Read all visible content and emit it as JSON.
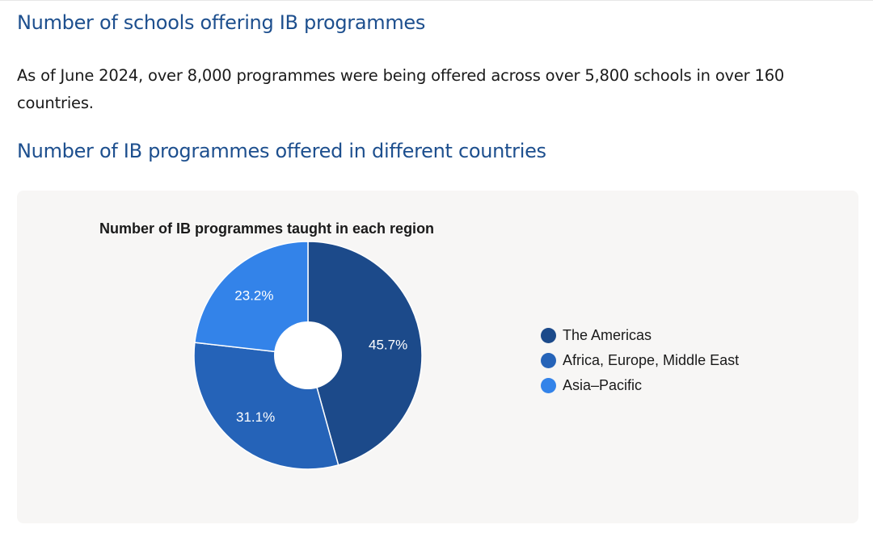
{
  "page": {
    "heading": "Number of schools offering IB programmes",
    "intro": "As of June 2024, over 8,000 programmes were being offered across over 5,800 schools in over 160 countries.",
    "subheading": "Number of IB programmes offered in different countries"
  },
  "chart_data": {
    "type": "pie",
    "donut": true,
    "title": "Number of IB programmes taught in each region",
    "legend_position": "right",
    "unit": "%",
    "slices": [
      {
        "label": "The Americas",
        "value": 45.7,
        "display": "45.7%",
        "color": "#1c4a8a"
      },
      {
        "label": "Africa, Europe, Middle East",
        "value": 31.1,
        "display": "31.1%",
        "color": "#2563b8"
      },
      {
        "label": "Asia–Pacific",
        "value": 23.2,
        "display": "23.2%",
        "color": "#3383e9"
      }
    ]
  }
}
